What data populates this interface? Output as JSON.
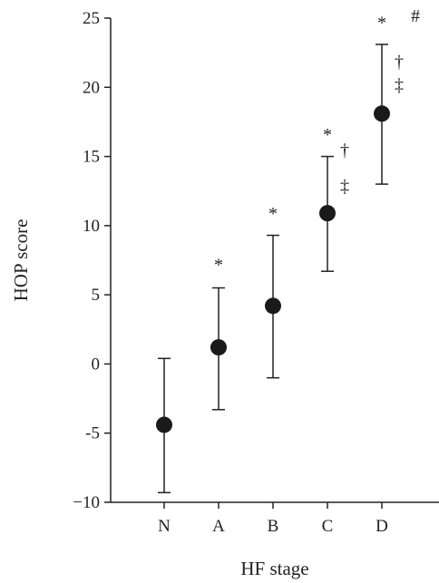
{
  "chart_data": {
    "type": "scatter",
    "xlabel": "HF stage",
    "ylabel": "HOP score",
    "categories": [
      "N",
      "A",
      "B",
      "C",
      "D"
    ],
    "ylim": [
      -10,
      25
    ],
    "yticks": [
      -10,
      -5,
      0,
      5,
      10,
      15,
      20,
      25
    ],
    "ytick_labels": [
      "−10",
      "-5",
      "0",
      "5",
      "10",
      "15",
      "20",
      "25"
    ],
    "series": [
      {
        "means": [
          -4.4,
          1.2,
          4.2,
          10.9,
          18.1
        ],
        "upper": [
          0.4,
          5.5,
          9.3,
          15.0,
          23.1
        ],
        "lower": [
          -9.3,
          -3.3,
          -1.0,
          6.7,
          13.0
        ]
      }
    ],
    "annotations": [
      {
        "category": "A",
        "text": "*",
        "y": 7.2
      },
      {
        "category": "B",
        "text": "*",
        "y": 10.9
      },
      {
        "category": "C",
        "text": "*",
        "y": 16.6
      },
      {
        "category": "C",
        "text": "†",
        "y": 15.5,
        "side": "right"
      },
      {
        "category": "C",
        "text": "‡",
        "y": 12.9,
        "side": "right"
      },
      {
        "category": "D",
        "text": "*",
        "y": 24.7
      },
      {
        "category": "D",
        "text": "†",
        "y": 21.9,
        "side": "right"
      },
      {
        "category": "D",
        "text": "‡",
        "y": 20.2,
        "side": "right"
      },
      {
        "category": "D",
        "text": "#",
        "y": 25.2,
        "side": "far-right"
      }
    ],
    "grid": false,
    "legend": "none"
  }
}
